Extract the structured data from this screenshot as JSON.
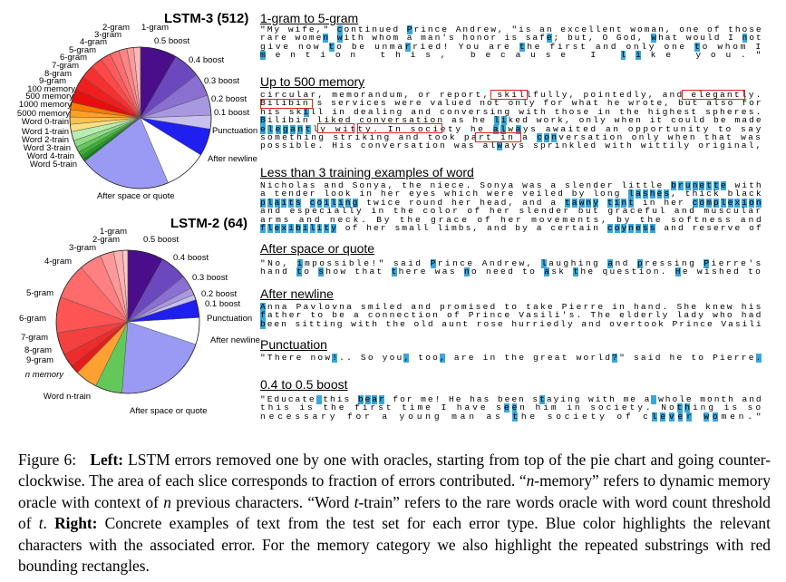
{
  "chart_data": [
    {
      "type": "pie",
      "title": "LSTM-3 (512)",
      "labels": [
        "1-gram",
        "2-gram",
        "3-gram",
        "4-gram",
        "5-gram",
        "6-gram",
        "7-gram",
        "8-gram",
        "9-gram",
        "100 memory",
        "500 memory",
        "1000 memory",
        "5000 memory",
        "Word 0-train",
        "Word 1-train",
        "Word 2-train",
        "Word 3-train",
        "Word 4-train",
        "Word 5-train",
        "After space or quote",
        "After newline",
        "Punctuation",
        "0.1 boost",
        "0.2 boost",
        "0.3 boost",
        "0.4 boost",
        "0.5 boost"
      ],
      "values": [
        1.5,
        1.5,
        1.8,
        2.0,
        2.2,
        2.6,
        3.0,
        3.0,
        3.0,
        1.6,
        1.6,
        1.6,
        1.6,
        2.0,
        1.5,
        1.2,
        1.0,
        0.8,
        0.6,
        20.0,
        9.4,
        6.0,
        3.0,
        4.4,
        5.0,
        6.0,
        8.0
      ],
      "colors": [
        "#ffb8b8",
        "#ff9a9a",
        "#ff8484",
        "#ff6e6e",
        "#ff5a5a",
        "#ff4848",
        "#f53030",
        "#f01e1e",
        "#e80e0e",
        "#ff7a00",
        "#ffa028",
        "#ffc050",
        "#ffe080",
        "#b8ecb0",
        "#8edc84",
        "#62c85a",
        "#3cb03a",
        "#239a26",
        "#0e8018",
        "#9a9af5",
        "#ffffff",
        "#1f1ff0",
        "#c8c0ee",
        "#a898e0",
        "#8a70d0",
        "#6c48be",
        "#4a0e8a"
      ]
    },
    {
      "type": "pie",
      "title": "LSTM-2 (64)",
      "labels": [
        "1-gram",
        "2-gram",
        "3-gram",
        "4-gram",
        "5-gram",
        "6-gram",
        "7-gram",
        "8-gram",
        "9-gram",
        "n memory",
        "Word n-train",
        "After space or quote",
        "After newline",
        "Punctuation",
        "0.1 boost",
        "0.2 boost",
        "0.3 boost",
        "0.4 boost",
        "0.5 boost"
      ],
      "values": [
        1.2,
        2.0,
        3.0,
        5.0,
        8.0,
        8.0,
        5.0,
        3.0,
        2.0,
        5.0,
        6.0,
        21.0,
        6.0,
        4.0,
        1.2,
        1.6,
        3.0,
        6.0,
        8.0
      ],
      "colors": [
        "#ffc8c8",
        "#ffb0b0",
        "#ff9898",
        "#ff8080",
        "#ff6a6a",
        "#ff5454",
        "#f54040",
        "#ee2c2c",
        "#e51c1c",
        "#ffa033",
        "#62c85a",
        "#9a9af5",
        "#ffffff",
        "#1f1ff0",
        "#c8c0ee",
        "#a898e0",
        "#8a70d0",
        "#6c48be",
        "#4a0e8a"
      ]
    }
  ],
  "pie_labels": {
    "lstm3": [
      "1-gram",
      "2-gram",
      "3-gram",
      "4-gram",
      "5-gram",
      "6-gram",
      "7-gram",
      "8-gram",
      "9-gram",
      "100 memory",
      "500 memory",
      "1000 memory",
      "5000 memory",
      "Word 0-train",
      "Word 1-train",
      "Word 2-train",
      "Word 3-train",
      "Word 4-train",
      "Word 5-train",
      "0.5 boost",
      "0.4 boost",
      "0.3 boost",
      "0.2 boost",
      "0.1 boost",
      "Punctuation",
      "After newline",
      "After space or quote"
    ],
    "lstm2": [
      "1-gram",
      "2-gram",
      "3-gram",
      "4-gram",
      "5-gram",
      "6-gram",
      "7-gram",
      "8-gram",
      "9-gram",
      "n memory",
      "Word n-train",
      "0.5 boost",
      "0.4 boost",
      "0.3 boost",
      "0.2 boost",
      "0.1 boost",
      "Punctuation",
      "After newline",
      "After space or quote"
    ]
  },
  "sections": [
    {
      "title": "1-gram to 5-gram",
      "lines": [
        [
          [
            "\"My wife,\" ",
            0
          ],
          [
            "c",
            1
          ],
          [
            "ontinued ",
            0
          ],
          [
            "P",
            1
          ],
          [
            "rince Andrew, \"is an excellent woman, one of those",
            0
          ]
        ],
        [
          [
            "rare wome",
            0
          ],
          [
            "n",
            1
          ],
          [
            " ",
            0
          ],
          [
            "w",
            1
          ],
          [
            "ith whom a man's honor is saf",
            0
          ],
          [
            "e",
            1
          ],
          [
            "; but, O God, ",
            0
          ],
          [
            "w",
            1
          ],
          [
            "hat would I ",
            0
          ],
          [
            "n",
            1
          ],
          [
            "ot",
            0
          ]
        ],
        [
          [
            "give now ",
            0
          ],
          [
            "t",
            1
          ],
          [
            "o be unma",
            0
          ],
          [
            "r",
            1
          ],
          [
            "ried! You are ",
            0
          ],
          [
            "t",
            1
          ],
          [
            "he first and only one ",
            0
          ],
          [
            "t",
            1
          ],
          [
            "o whom I",
            0
          ]
        ],
        [
          [
            "m",
            1
          ],
          [
            "ention this, because I ",
            0
          ],
          [
            "li",
            1
          ],
          [
            "ke you.\"",
            0
          ]
        ]
      ]
    },
    {
      "title": "Up to 500 memory",
      "lines": [
        [
          [
            "circular, memorandum, or report, skillfully, pointedly, and elegantly.",
            0
          ]
        ],
        [
          [
            "Bilibin's services were valued not only for what he wrote, but also for",
            0
          ]
        ],
        [
          [
            "his sk",
            0
          ],
          [
            "i",
            1
          ],
          [
            "ll in dealing and conversing with those in the highest spheres.",
            0
          ]
        ],
        [
          [
            "B",
            1
          ],
          [
            "ilibin liked conversation as he ",
            0
          ],
          [
            "li",
            1
          ],
          [
            "ked work, only when it could be made",
            0
          ]
        ],
        [
          [
            "ele",
            1
          ],
          [
            "gant",
            1
          ],
          [
            "ly witty. In society he ",
            0
          ],
          [
            "al",
            1
          ],
          [
            "w",
            0
          ],
          [
            "a",
            1
          ],
          [
            "ys awaited an opportunity to say",
            0
          ]
        ],
        [
          [
            "something striking and took part in a ",
            0
          ],
          [
            "con",
            1
          ],
          [
            "versation only when that was",
            0
          ]
        ],
        [
          [
            "possible. His conversation was al",
            0
          ],
          [
            "w",
            1
          ],
          [
            "ays sprinkled with wittily original,",
            0
          ]
        ]
      ]
    },
    {
      "title": "Less than 3 training examples of word",
      "lines": [
        [
          [
            "Nicholas and Sonya, the niece. Sonya was a slender little ",
            0
          ],
          [
            "brunette",
            1
          ],
          [
            " with",
            0
          ]
        ],
        [
          [
            "a tender look in her eyes which were veiled by long ",
            0
          ],
          [
            "lashes",
            1
          ],
          [
            ", thick black",
            0
          ]
        ],
        [
          [
            "plaits",
            1
          ],
          [
            " ",
            0
          ],
          [
            "coiling",
            1
          ],
          [
            " twice round her head, and a ",
            0
          ],
          [
            "tawny",
            1
          ],
          [
            " ",
            0
          ],
          [
            "tint",
            1
          ],
          [
            " in her ",
            0
          ],
          [
            "complexion",
            1
          ]
        ],
        [
          [
            "and especially in the color of her slender but graceful and muscular",
            0
          ]
        ],
        [
          [
            "arms and neck. By the grace of her movements, by the softness and",
            0
          ]
        ],
        [
          [
            "flexibility",
            1
          ],
          [
            " of her small limbs, and by a certain ",
            0
          ],
          [
            "coyness",
            1
          ],
          [
            " and reserve of",
            0
          ]
        ]
      ]
    },
    {
      "title": "After space or quote",
      "lines": [
        [
          [
            "\"No, ",
            0
          ],
          [
            "i",
            1
          ],
          [
            "mpossible!\" said ",
            0
          ],
          [
            "P",
            1
          ],
          [
            "rince Andrew, ",
            0
          ],
          [
            "l",
            1
          ],
          [
            "aughing ",
            0
          ],
          [
            "a",
            1
          ],
          [
            "nd ",
            0
          ],
          [
            "p",
            1
          ],
          [
            "ressing ",
            0
          ],
          [
            "P",
            1
          ],
          [
            "ierre's",
            0
          ]
        ],
        [
          [
            "hand ",
            0
          ],
          [
            "t",
            1
          ],
          [
            "o ",
            0
          ],
          [
            "s",
            1
          ],
          [
            "how that ",
            0
          ],
          [
            "t",
            1
          ],
          [
            "here was ",
            0
          ],
          [
            "n",
            1
          ],
          [
            "o need to ",
            0
          ],
          [
            "a",
            1
          ],
          [
            "sk ",
            0
          ],
          [
            "t",
            1
          ],
          [
            "he question. ",
            0
          ],
          [
            "H",
            1
          ],
          [
            "e wished to",
            0
          ]
        ]
      ]
    },
    {
      "title": "After newline",
      "lines": [
        [
          [
            "A",
            1
          ],
          [
            "nna Pavlovna smiled and promised to take Pierre in hand. She knew his",
            0
          ]
        ],
        [
          [
            "f",
            1
          ],
          [
            "ather to be a connection of Prince Vasili's. The elderly lady who had",
            0
          ]
        ],
        [
          [
            "b",
            1
          ],
          [
            "een sitting with the old aunt rose hurriedly and overtook Prince Vasili",
            0
          ]
        ]
      ]
    },
    {
      "title": "Punctuation",
      "lines": [
        [
          [
            "\"There now",
            0
          ],
          [
            "!",
            1
          ],
          [
            ".. So you",
            0
          ],
          [
            ",",
            1
          ],
          [
            " too",
            0
          ],
          [
            ",",
            1
          ],
          [
            " are in the great world",
            0
          ],
          [
            "?",
            1
          ],
          [
            "\" said he to Pierre",
            0
          ],
          [
            ".",
            1
          ]
        ]
      ]
    },
    {
      "title": "0.4 to 0.5 boost",
      "lines": [
        [
          [
            "\"Educate",
            0
          ],
          [
            " ",
            1
          ],
          [
            "this ",
            0
          ],
          [
            "bear",
            1
          ],
          [
            " for me! He has been s",
            0
          ],
          [
            "t",
            1
          ],
          [
            "aying with me a",
            0
          ],
          [
            " ",
            1
          ],
          [
            "whole month and",
            0
          ]
        ],
        [
          [
            "this is the first time I have s",
            0
          ],
          [
            "ee",
            1
          ],
          [
            "n him in society. No",
            0
          ],
          [
            "th",
            1
          ],
          [
            "ing is so",
            0
          ]
        ],
        [
          [
            "necessary for a young man as ",
            0
          ],
          [
            "t",
            1
          ],
          [
            "he society of c",
            0
          ],
          [
            "lever",
            1
          ],
          [
            " ",
            0
          ],
          [
            "wo",
            1
          ],
          [
            "men.\"",
            0
          ]
        ]
      ]
    }
  ],
  "caption": {
    "fig_label": "Figure 6:",
    "left_bold": "Left:",
    "left_text": "LSTM errors removed one by one with oracles, starting from top of the pie chart and going counter-clockwise. The area of each slice corresponds to fraction of errors contributed.",
    "memory_def_a": "“",
    "memory_def_n": "n",
    "memory_def_b": "-memory” refers to dynamic memory oracle with context of",
    "memory_def_n2": "n",
    "memory_def_c": "previous characters. “Word",
    "word_t": "t",
    "word_def": "-train” refers to the rare words oracle with word count threshold of",
    "word_t2": "t",
    "word_def_end": ".",
    "right_bold": "Right:",
    "right_text": "Concrete examples of text from the test set for each error type. Blue color highlights the relevant characters with the associated error. For the memory category we also highlight the repeated substrings with red bounding rectangles."
  }
}
